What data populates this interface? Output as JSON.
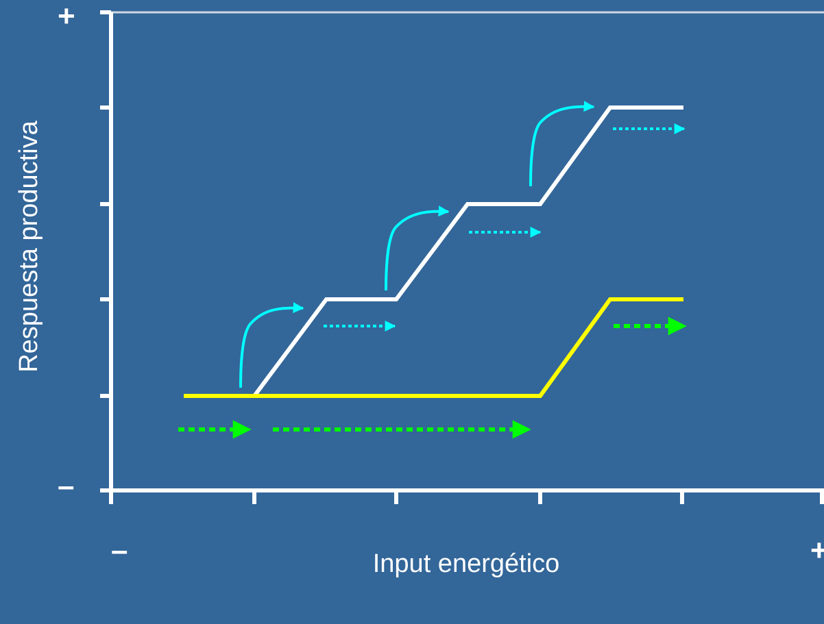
{
  "axes": {
    "y_title": "Respuesta productiva",
    "x_title": "Input energético",
    "y_max_sign": "+",
    "y_min_sign": "–",
    "x_min_sign": "–",
    "x_max_sign": "+"
  },
  "colors": {
    "background": "#336699",
    "axis": "#ffffff",
    "staircase": "#ffffff",
    "baseline_curve": "#ffff00",
    "cyan_arrows": "#00ffff",
    "green_arrows": "#00ff00"
  },
  "icons": {
    "curved_arrow": "curved-arrow-icon",
    "dotted_arrow": "dotted-arrow-icon"
  }
}
